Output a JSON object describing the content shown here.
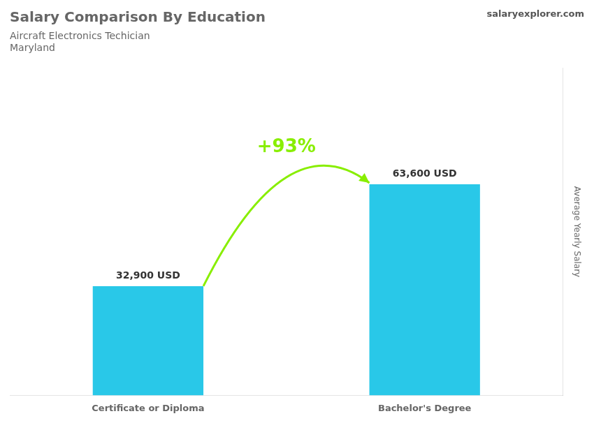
{
  "chart_data": {
    "type": "bar",
    "title": "Salary Comparison By Education",
    "subtitle": [
      "Aircraft Electronics Techician",
      "Maryland"
    ],
    "categories": [
      "Certificate or Diploma",
      "Bachelor's Degree"
    ],
    "values": [
      32900,
      63600
    ],
    "value_labels": [
      "32,900 USD",
      "63,600 USD"
    ],
    "data_labels": true,
    "color": "#29C8E8",
    "ylabel": "Average Yearly Salary",
    "ylim": [
      0,
      98580
    ],
    "grid": false,
    "tick_labels": "x",
    "annotations": [
      {
        "text": "+93%",
        "color": "#88EE00"
      },
      {
        "text": "salaryexplorer.com"
      }
    ]
  }
}
